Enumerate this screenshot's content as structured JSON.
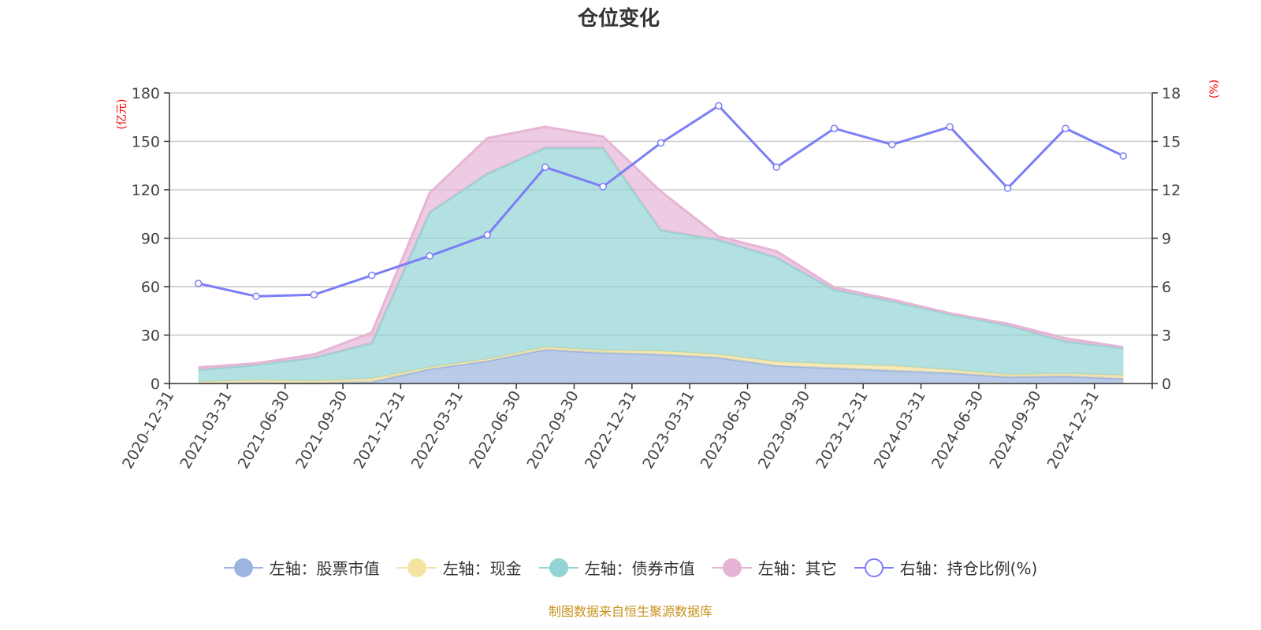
{
  "chart_data": {
    "type": "area",
    "title": "仓位变化",
    "left_axis_unit": "(亿元)",
    "right_axis_unit": "(%)",
    "categories": [
      "2020-12-31",
      "2021-03-31",
      "2021-06-30",
      "2021-09-30",
      "2021-12-31",
      "2022-03-31",
      "2022-06-30",
      "2022-09-30",
      "2022-12-31",
      "2023-03-31",
      "2023-06-30",
      "2023-09-30",
      "2023-12-31",
      "2024-03-31",
      "2024-06-30",
      "2024-09-30",
      "2024-12-31"
    ],
    "left_ylim": [
      0,
      180
    ],
    "left_ticks": [
      "0",
      "30",
      "60",
      "90",
      "120",
      "150",
      "180"
    ],
    "right_ylim": [
      0,
      18
    ],
    "right_ticks": [
      "0",
      "3",
      "6",
      "9",
      "12",
      "15",
      "18"
    ],
    "grid": true,
    "legend_placement": "bottom",
    "stacked_series": [
      {
        "name": "左轴：股票市值",
        "color": "#9bb5e0",
        "values": [
          0.3,
          0.5,
          0.3,
          1,
          9,
          14,
          21,
          19,
          18,
          16,
          11,
          9.5,
          8,
          6.5,
          4,
          4.5,
          3
        ]
      },
      {
        "name": "左轴：现金",
        "color": "#f5e3a3",
        "values": [
          0.7,
          1.5,
          1.2,
          2,
          1,
          1,
          1.5,
          1.5,
          2,
          2,
          2.5,
          2.5,
          3,
          2,
          1.5,
          1.5,
          2
        ]
      },
      {
        "name": "左轴：债券市值",
        "color": "#93d3d3",
        "values": [
          7.5,
          9.5,
          14.5,
          22,
          96,
          115,
          123.5,
          125.5,
          75,
          71,
          64.5,
          46,
          40,
          34.5,
          30.5,
          20,
          17
        ]
      },
      {
        "name": "左轴：其它",
        "color": "#e6b5d6",
        "values": [
          1.5,
          1,
          2,
          6.5,
          12,
          22,
          13,
          7,
          24,
          2,
          4,
          1.5,
          1,
          0.5,
          1,
          2,
          0.5
        ]
      }
    ],
    "line_series": {
      "name": "右轴：持仓比例(%)",
      "color": "#7b7ef5",
      "values": [
        6.2,
        5.4,
        5.5,
        6.7,
        7.9,
        9.2,
        13.4,
        12.2,
        14.9,
        17.2,
        13.4,
        15.8,
        14.8,
        15.9,
        12.1,
        15.8,
        14.1
      ]
    }
  },
  "footer": "制图数据来自恒生聚源数据库"
}
